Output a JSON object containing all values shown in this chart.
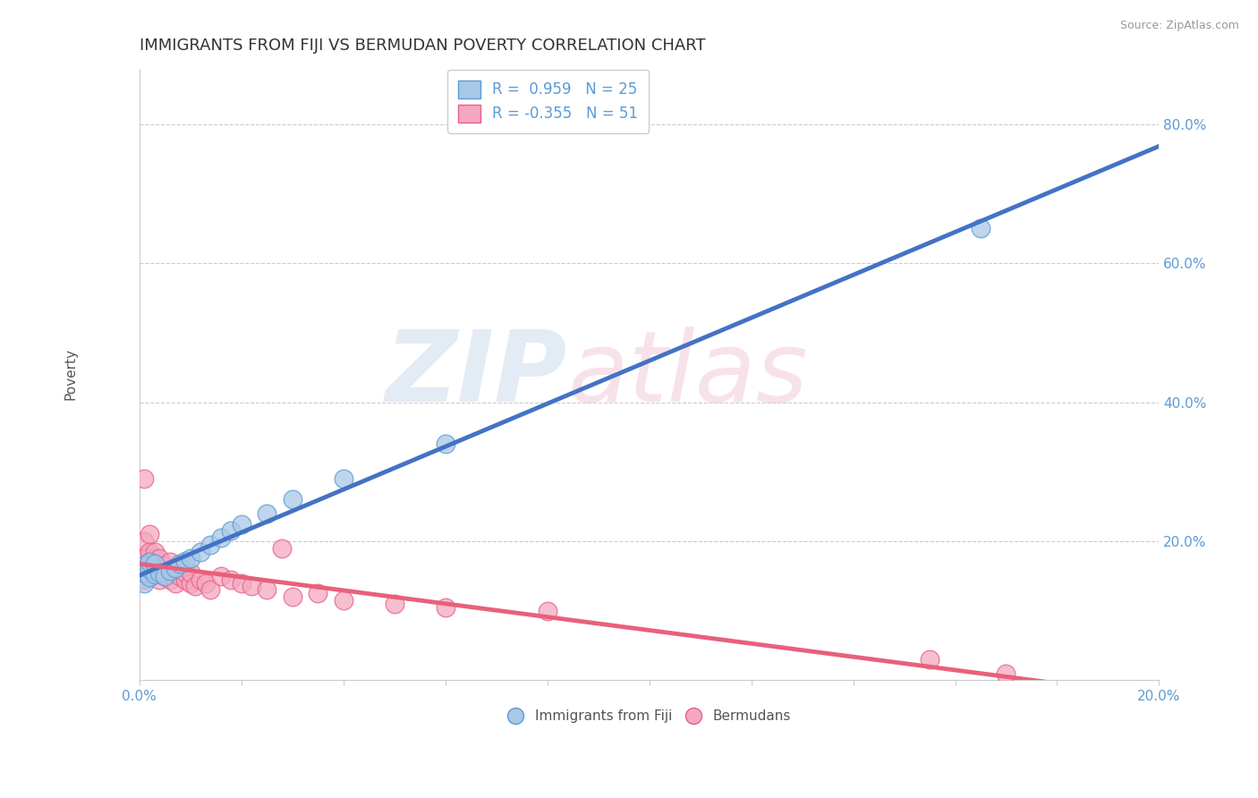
{
  "title": "IMMIGRANTS FROM FIJI VS BERMUDAN POVERTY CORRELATION CHART",
  "source": "Source: ZipAtlas.com",
  "ylabel": "Poverty",
  "xlim": [
    0.0,
    0.2
  ],
  "ylim": [
    0.0,
    0.88
  ],
  "fiji_color": "#a8c8e8",
  "bermuda_color": "#f4a8c0",
  "fiji_edge": "#5b9bd5",
  "bermuda_edge": "#e8608a",
  "trend_fiji_color": "#4472c4",
  "trend_bermuda_color": "#e8607a",
  "R_fiji": 0.959,
  "N_fiji": 25,
  "R_bermuda": -0.355,
  "N_bermuda": 51,
  "watermark_zip": "ZIP",
  "watermark_atlas": "atlas",
  "legend_label_fiji": "Immigrants from Fiji",
  "legend_label_bermuda": "Bermudans",
  "fiji_x": [
    0.001,
    0.001,
    0.001,
    0.002,
    0.002,
    0.002,
    0.003,
    0.003,
    0.004,
    0.005,
    0.006,
    0.007,
    0.008,
    0.009,
    0.01,
    0.012,
    0.014,
    0.016,
    0.018,
    0.02,
    0.025,
    0.03,
    0.04,
    0.06,
    0.165
  ],
  "fiji_y": [
    0.14,
    0.155,
    0.165,
    0.148,
    0.16,
    0.17,
    0.152,
    0.168,
    0.155,
    0.15,
    0.158,
    0.162,
    0.168,
    0.172,
    0.175,
    0.185,
    0.195,
    0.205,
    0.215,
    0.225,
    0.24,
    0.26,
    0.29,
    0.34,
    0.65
  ],
  "bermuda_x": [
    0.0,
    0.001,
    0.001,
    0.001,
    0.001,
    0.001,
    0.001,
    0.002,
    0.002,
    0.002,
    0.002,
    0.002,
    0.003,
    0.003,
    0.003,
    0.003,
    0.004,
    0.004,
    0.004,
    0.005,
    0.005,
    0.005,
    0.006,
    0.006,
    0.006,
    0.007,
    0.007,
    0.008,
    0.008,
    0.009,
    0.009,
    0.01,
    0.01,
    0.011,
    0.012,
    0.013,
    0.014,
    0.016,
    0.018,
    0.02,
    0.022,
    0.025,
    0.028,
    0.03,
    0.035,
    0.04,
    0.05,
    0.06,
    0.08,
    0.155,
    0.17
  ],
  "bermuda_y": [
    0.155,
    0.18,
    0.2,
    0.16,
    0.145,
    0.175,
    0.29,
    0.21,
    0.165,
    0.15,
    0.185,
    0.17,
    0.155,
    0.165,
    0.175,
    0.185,
    0.16,
    0.145,
    0.175,
    0.15,
    0.165,
    0.155,
    0.16,
    0.145,
    0.17,
    0.155,
    0.14,
    0.15,
    0.16,
    0.145,
    0.155,
    0.14,
    0.155,
    0.135,
    0.145,
    0.14,
    0.13,
    0.15,
    0.145,
    0.14,
    0.135,
    0.13,
    0.19,
    0.12,
    0.125,
    0.115,
    0.11,
    0.105,
    0.1,
    0.03,
    0.01
  ]
}
